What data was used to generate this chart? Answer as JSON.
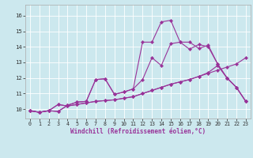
{
  "xlabel": "Windchill (Refroidissement éolien,°C)",
  "xlim": [
    -0.5,
    23.5
  ],
  "ylim": [
    9.4,
    16.7
  ],
  "yticks": [
    10,
    11,
    12,
    13,
    14,
    15,
    16
  ],
  "xticks": [
    0,
    1,
    2,
    3,
    4,
    5,
    6,
    7,
    8,
    9,
    10,
    11,
    12,
    13,
    14,
    15,
    16,
    17,
    18,
    19,
    20,
    21,
    22,
    23
  ],
  "bg_color": "#cce8ee",
  "line_color": "#993399",
  "grid_color": "#ffffff",
  "series": [
    [
      9.9,
      9.8,
      9.9,
      10.3,
      10.2,
      10.3,
      10.4,
      10.5,
      10.55,
      10.6,
      10.7,
      10.8,
      11.0,
      11.2,
      11.4,
      11.6,
      11.75,
      11.9,
      12.1,
      12.3,
      12.5,
      12.7,
      12.9,
      13.3
    ],
    [
      9.9,
      9.8,
      9.9,
      10.3,
      10.2,
      10.3,
      10.4,
      10.5,
      10.55,
      10.6,
      10.7,
      10.8,
      11.0,
      11.2,
      11.4,
      11.6,
      11.75,
      11.9,
      12.1,
      12.35,
      12.8,
      12.0,
      11.4,
      10.5
    ],
    [
      9.9,
      9.8,
      9.9,
      9.85,
      10.25,
      10.45,
      10.5,
      11.9,
      11.95,
      10.95,
      11.1,
      11.3,
      11.9,
      13.3,
      12.8,
      14.2,
      14.3,
      13.85,
      14.15,
      14.0,
      12.9,
      12.0,
      11.4,
      10.5
    ],
    [
      9.9,
      9.8,
      9.9,
      9.85,
      10.25,
      10.45,
      10.5,
      11.9,
      11.95,
      10.95,
      11.1,
      11.3,
      14.3,
      14.3,
      15.6,
      15.7,
      14.3,
      14.3,
      13.9,
      14.1,
      12.9,
      12.0,
      11.4,
      10.5
    ]
  ],
  "label_fontsize": 5.0,
  "tick_fontsize": 4.8,
  "xlabel_fontsize": 5.5,
  "linewidth": 0.8,
  "markersize": 2.2
}
